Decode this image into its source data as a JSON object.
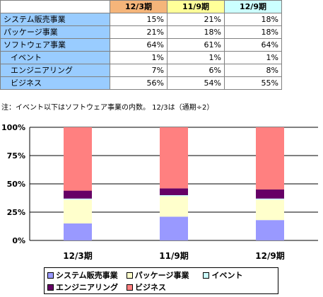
{
  "table": {
    "headers": [
      "12/3期",
      "11/9期",
      "12/9期"
    ],
    "header_colors": [
      "#f5b57a",
      "#ffff99",
      "#ccffff"
    ],
    "label_color": "#99ccff",
    "rows": [
      {
        "label": "システム販売事業",
        "indent": false,
        "values": [
          "15%",
          "21%",
          "18%"
        ]
      },
      {
        "label": "パッケージ事業",
        "indent": false,
        "values": [
          "21%",
          "18%",
          "18%"
        ]
      },
      {
        "label": "ソフトウェア事業",
        "indent": false,
        "values": [
          "64%",
          "61%",
          "64%"
        ]
      },
      {
        "label": "イベント",
        "indent": true,
        "values": [
          "1%",
          "1%",
          "1%"
        ]
      },
      {
        "label": "エンジニアリング",
        "indent": true,
        "values": [
          "7%",
          "6%",
          "8%"
        ]
      },
      {
        "label": "ビジネス",
        "indent": true,
        "values": [
          "56%",
          "54%",
          "55%"
        ]
      }
    ]
  },
  "note": "注：イベント以下はソフトウェア事業の内数。 12/3は（通期÷2）",
  "chart_data": {
    "type": "bar",
    "stacked": true,
    "categories": [
      "12/3期",
      "11/9期",
      "12/9期"
    ],
    "ylim": [
      0,
      100
    ],
    "yticks": [
      "0%",
      "25%",
      "50%",
      "75%",
      "100%"
    ],
    "series": [
      {
        "name": "システム販売事業",
        "color": "#9999ff",
        "values": [
          15,
          21,
          18
        ]
      },
      {
        "name": "パッケージ事業",
        "color": "#ffffcc",
        "values": [
          21,
          18,
          18
        ]
      },
      {
        "name": "イベント",
        "color": "#ccffff",
        "values": [
          1,
          1,
          1
        ]
      },
      {
        "name": "エンジニアリング",
        "color": "#660066",
        "values": [
          7,
          6,
          8
        ]
      },
      {
        "name": "ビジネス",
        "color": "#ff8080",
        "values": [
          56,
          54,
          55
        ]
      }
    ],
    "legend": "bottom"
  }
}
